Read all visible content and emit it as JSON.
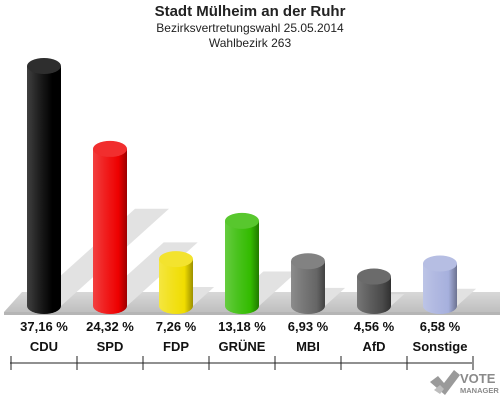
{
  "header": {
    "title": "Stadt Mülheim an der Ruhr",
    "subtitle": "Bezirksvertretungswahl 25.05.2014",
    "district": "Wahlbezirk 263"
  },
  "chart_data": {
    "type": "bar",
    "title": "Stadt Mülheim an der Ruhr",
    "subtitle": "Bezirksvertretungswahl 25.05.2014 · Wahlbezirk 263",
    "categories": [
      "CDU",
      "SPD",
      "FDP",
      "GRÜNE",
      "MBI",
      "AfD",
      "Sonstige"
    ],
    "values": [
      37.16,
      24.32,
      7.26,
      13.18,
      6.93,
      4.56,
      6.58
    ],
    "value_labels": [
      "37,16 %",
      "24,32 %",
      "7,26 %",
      "13,18 %",
      "6,93 %",
      "4,56 %",
      "6,58 %"
    ],
    "colors": [
      "#000000",
      "#ee0000",
      "#f0dd00",
      "#33bb00",
      "#666666",
      "#4a4a4a",
      "#a6b0dd"
    ],
    "ylim": [
      0,
      37.16
    ],
    "grid": false,
    "legend": "none"
  },
  "logo": {
    "text_top": "VOTE",
    "text_bottom": "MANAGER"
  }
}
